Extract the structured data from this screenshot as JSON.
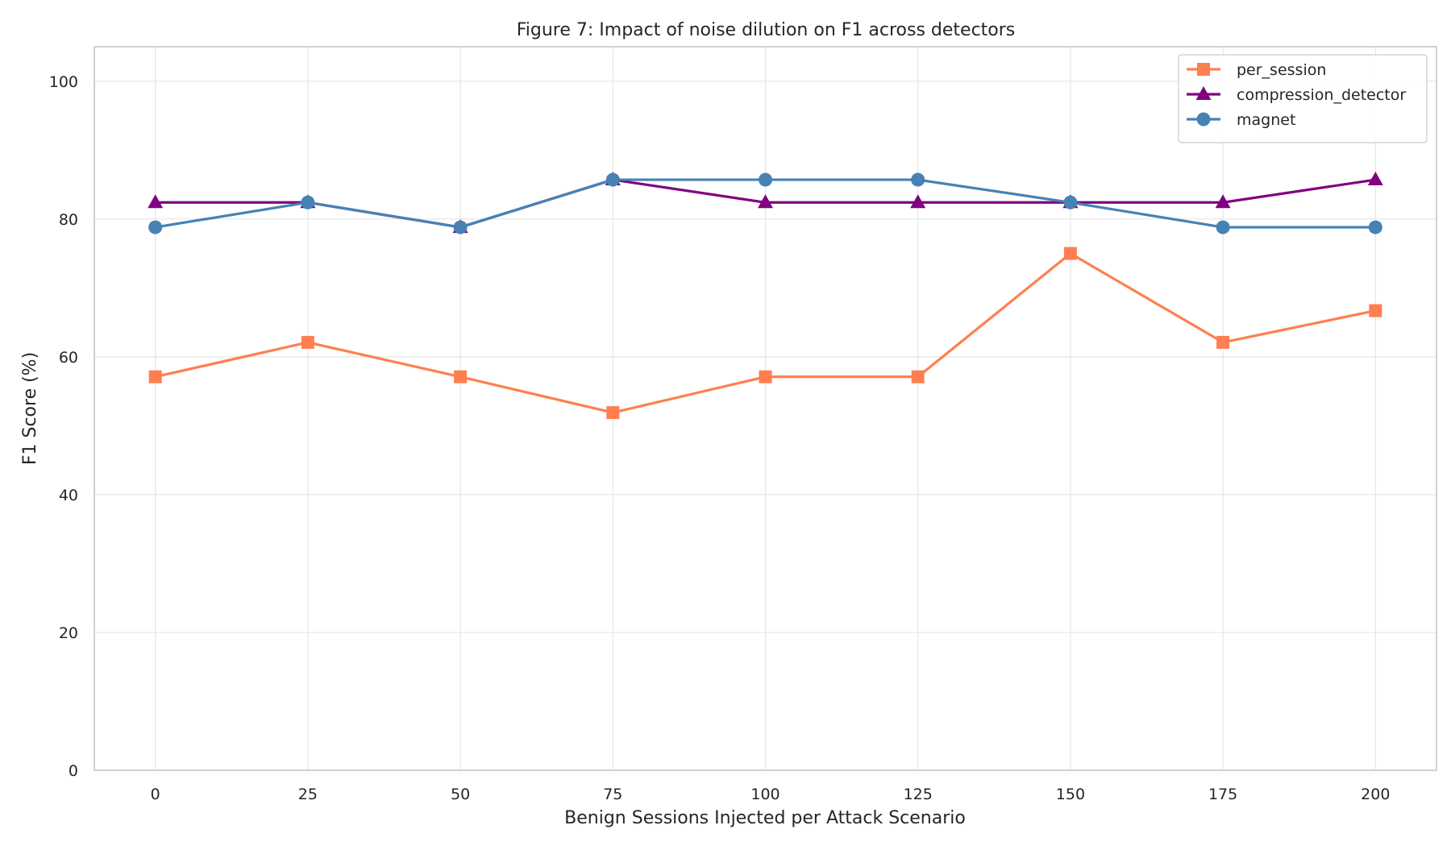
{
  "chart_data": {
    "type": "line",
    "title": "Figure 7: Impact of noise dilution on F1 across detectors",
    "xlabel": "Benign Sessions Injected per Attack Scenario",
    "ylabel": "F1 Score (%)",
    "x": [
      0,
      25,
      50,
      75,
      100,
      125,
      150,
      175,
      200
    ],
    "xlim": [
      -10,
      210
    ],
    "ylim": [
      0,
      105
    ],
    "xticks": [
      0,
      25,
      50,
      75,
      100,
      125,
      150,
      175,
      200
    ],
    "yticks": [
      0,
      20,
      40,
      60,
      80,
      100
    ],
    "grid": true,
    "legend_position": "top-right",
    "series": [
      {
        "name": "per_session",
        "color": "#ff7f50",
        "marker": "square",
        "values": [
          57.1,
          62.1,
          57.1,
          51.9,
          57.1,
          57.1,
          75.0,
          62.1,
          66.7
        ]
      },
      {
        "name": "compression_detector",
        "color": "#800080",
        "marker": "triangle",
        "values": [
          82.4,
          82.4,
          78.8,
          85.7,
          82.4,
          82.4,
          82.4,
          82.4,
          85.7
        ]
      },
      {
        "name": "magnet",
        "color": "#4682b4",
        "marker": "circle",
        "values": [
          78.8,
          82.4,
          78.8,
          85.7,
          85.7,
          85.7,
          82.4,
          78.8,
          78.8
        ]
      }
    ]
  }
}
